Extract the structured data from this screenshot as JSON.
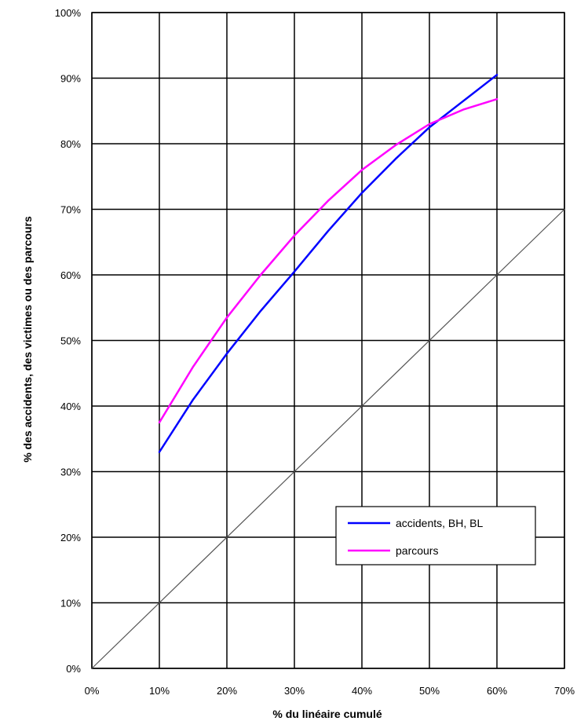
{
  "chart_data": {
    "type": "line",
    "xlabel": "% du linéaire cumulé",
    "ylabel": "% des accidents, des victimes ou des parcours",
    "xlim": [
      0,
      70
    ],
    "ylim": [
      0,
      100
    ],
    "x_ticks": [
      0,
      10,
      20,
      30,
      40,
      50,
      60,
      70
    ],
    "y_ticks": [
      0,
      10,
      20,
      30,
      40,
      50,
      60,
      70,
      80,
      90,
      100
    ],
    "x_tick_labels": [
      "0%",
      "10%",
      "20%",
      "30%",
      "40%",
      "50%",
      "60%",
      "70%"
    ],
    "y_tick_labels": [
      "0%",
      "10%",
      "20%",
      "30%",
      "40%",
      "50%",
      "60%",
      "70%",
      "80%",
      "90%",
      "100%"
    ],
    "grid": true,
    "legend_position": "lower-right",
    "series": [
      {
        "name": "accidents, BH, BL",
        "color": "#0000ff",
        "x": [
          10,
          15,
          20,
          25,
          30,
          35,
          40,
          45,
          50,
          55,
          60
        ],
        "y": [
          33,
          41,
          48,
          54.5,
          60.5,
          66.7,
          72.5,
          77.7,
          82.5,
          86.5,
          90.5
        ]
      },
      {
        "name": "parcours",
        "color": "#ff00ff",
        "x": [
          10,
          15,
          20,
          25,
          30,
          35,
          40,
          45,
          50,
          55,
          60
        ],
        "y": [
          37.5,
          46,
          53.5,
          60,
          66,
          71.3,
          76,
          79.8,
          83,
          85.2,
          86.8
        ]
      },
      {
        "color": "#555555",
        "x": [
          0,
          70
        ],
        "y": [
          0,
          70
        ]
      }
    ]
  }
}
